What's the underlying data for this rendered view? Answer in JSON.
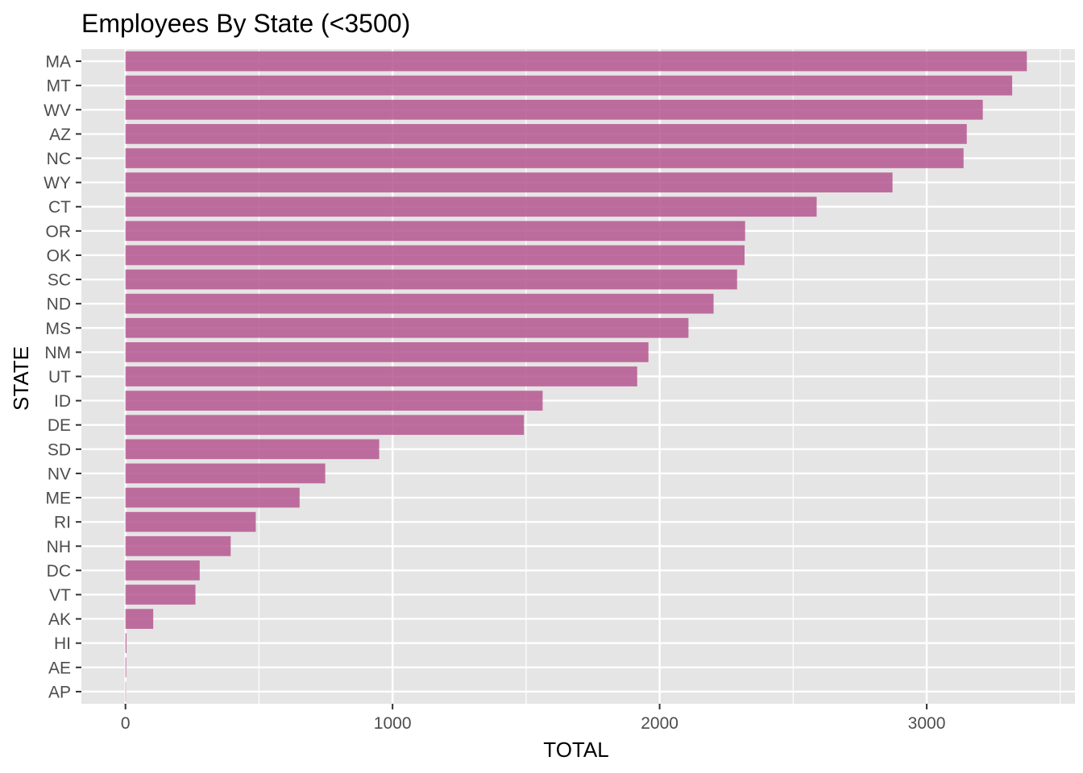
{
  "chart_data": {
    "type": "bar",
    "orientation": "horizontal",
    "title": "Employees By State (<3500)",
    "xlabel": "TOTAL",
    "ylabel": "STATE",
    "xlim": [
      -165,
      3555
    ],
    "x_ticks": [
      0,
      1000,
      2000,
      3000
    ],
    "grid": true,
    "bar_color": "#b5578f",
    "panel_color": "#e5e5e5",
    "categories": [
      "MA",
      "MT",
      "WV",
      "AZ",
      "NC",
      "WY",
      "CT",
      "OR",
      "OK",
      "SC",
      "ND",
      "MS",
      "NM",
      "UT",
      "ID",
      "DE",
      "SD",
      "NV",
      "ME",
      "RI",
      "NH",
      "DC",
      "VT",
      "AK",
      "HI",
      "AE",
      "AP"
    ],
    "values": [
      3375,
      3320,
      3210,
      3150,
      3138,
      2872,
      2588,
      2320,
      2318,
      2290,
      2202,
      2108,
      1958,
      1916,
      1562,
      1492,
      950,
      748,
      652,
      488,
      394,
      278,
      262,
      104,
      4,
      3,
      1
    ]
  }
}
